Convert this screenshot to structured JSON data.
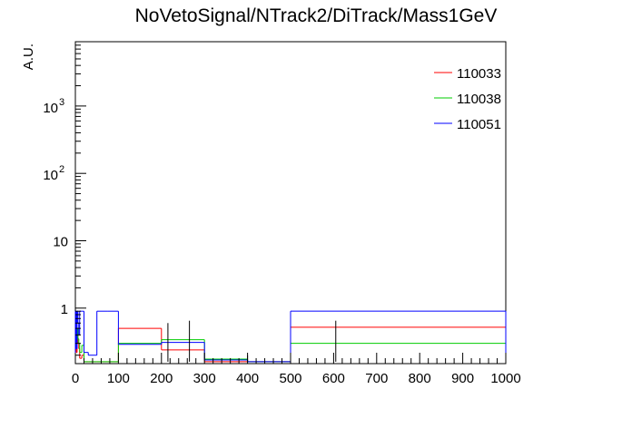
{
  "chart_data": {
    "type": "histogram",
    "title": "NoVetoSignal/NTrack2/DiTrack/Mass1GeV",
    "xlabel": "",
    "ylabel": "A.U.",
    "xlim": [
      0,
      1000
    ],
    "ylim": [
      0.15,
      9000
    ],
    "yscale": "log",
    "x_ticks": [
      0,
      100,
      200,
      300,
      400,
      500,
      600,
      700,
      800,
      900,
      1000
    ],
    "y_ticks": [
      {
        "value": 1,
        "label": "1"
      },
      {
        "value": 10,
        "label": "10"
      },
      {
        "value": 100,
        "label": "10",
        "exp": "2"
      },
      {
        "value": 1000,
        "label": "10",
        "exp": "3"
      }
    ],
    "legend_position": "top-right",
    "series": [
      {
        "name": "110033",
        "color": "#ff0000",
        "bins": [
          [
            0,
            2,
            0.3
          ],
          [
            2,
            4,
            0.22
          ],
          [
            4,
            6,
            0.4
          ],
          [
            6,
            8,
            0.3
          ],
          [
            8,
            10,
            0.25
          ],
          [
            10,
            15,
            0.18
          ],
          [
            15,
            20,
            0.2
          ],
          [
            20,
            30,
            0.16
          ],
          [
            30,
            50,
            0.16
          ],
          [
            50,
            75,
            0.16
          ],
          [
            75,
            100,
            0.16
          ],
          [
            100,
            200,
            0.5
          ],
          [
            200,
            300,
            0.24
          ],
          [
            300,
            400,
            0.16
          ],
          [
            400,
            500,
            0.16
          ],
          [
            500,
            1000,
            0.52
          ]
        ]
      },
      {
        "name": "110038",
        "color": "#00cc00",
        "bins": [
          [
            0,
            2,
            0.45
          ],
          [
            2,
            4,
            0.3
          ],
          [
            4,
            6,
            0.5
          ],
          [
            6,
            8,
            0.35
          ],
          [
            8,
            10,
            0.3
          ],
          [
            10,
            15,
            0.22
          ],
          [
            15,
            20,
            0.28
          ],
          [
            20,
            30,
            0.16
          ],
          [
            30,
            50,
            0.16
          ],
          [
            50,
            75,
            0.16
          ],
          [
            75,
            100,
            0.16
          ],
          [
            100,
            200,
            0.3
          ],
          [
            200,
            300,
            0.34
          ],
          [
            300,
            400,
            0.175
          ],
          [
            400,
            500,
            0.16
          ],
          [
            500,
            1000,
            0.3
          ]
        ]
      },
      {
        "name": "110051",
        "color": "#0000ff",
        "bins": [
          [
            0,
            2,
            0.9
          ],
          [
            2,
            4,
            0.25
          ],
          [
            4,
            6,
            0.9
          ],
          [
            6,
            8,
            0.6
          ],
          [
            8,
            10,
            0.4
          ],
          [
            10,
            15,
            0.9
          ],
          [
            15,
            20,
            0.9
          ],
          [
            20,
            30,
            0.22
          ],
          [
            30,
            50,
            0.2
          ],
          [
            50,
            75,
            0.9
          ],
          [
            75,
            100,
            0.9
          ],
          [
            100,
            200,
            0.29
          ],
          [
            200,
            300,
            0.31
          ],
          [
            300,
            400,
            0.17
          ],
          [
            400,
            500,
            0.16
          ],
          [
            500,
            1000,
            0.9
          ]
        ]
      }
    ],
    "error_bars": [
      {
        "x": 215,
        "ylow": 0.16,
        "yhigh": 0.6
      },
      {
        "x": 265,
        "ylow": 0.16,
        "yhigh": 0.65
      },
      {
        "x": 400,
        "ylow": 0.16,
        "yhigh": 0.2
      },
      {
        "x": 605,
        "ylow": 0.16,
        "yhigh": 0.65
      }
    ]
  }
}
